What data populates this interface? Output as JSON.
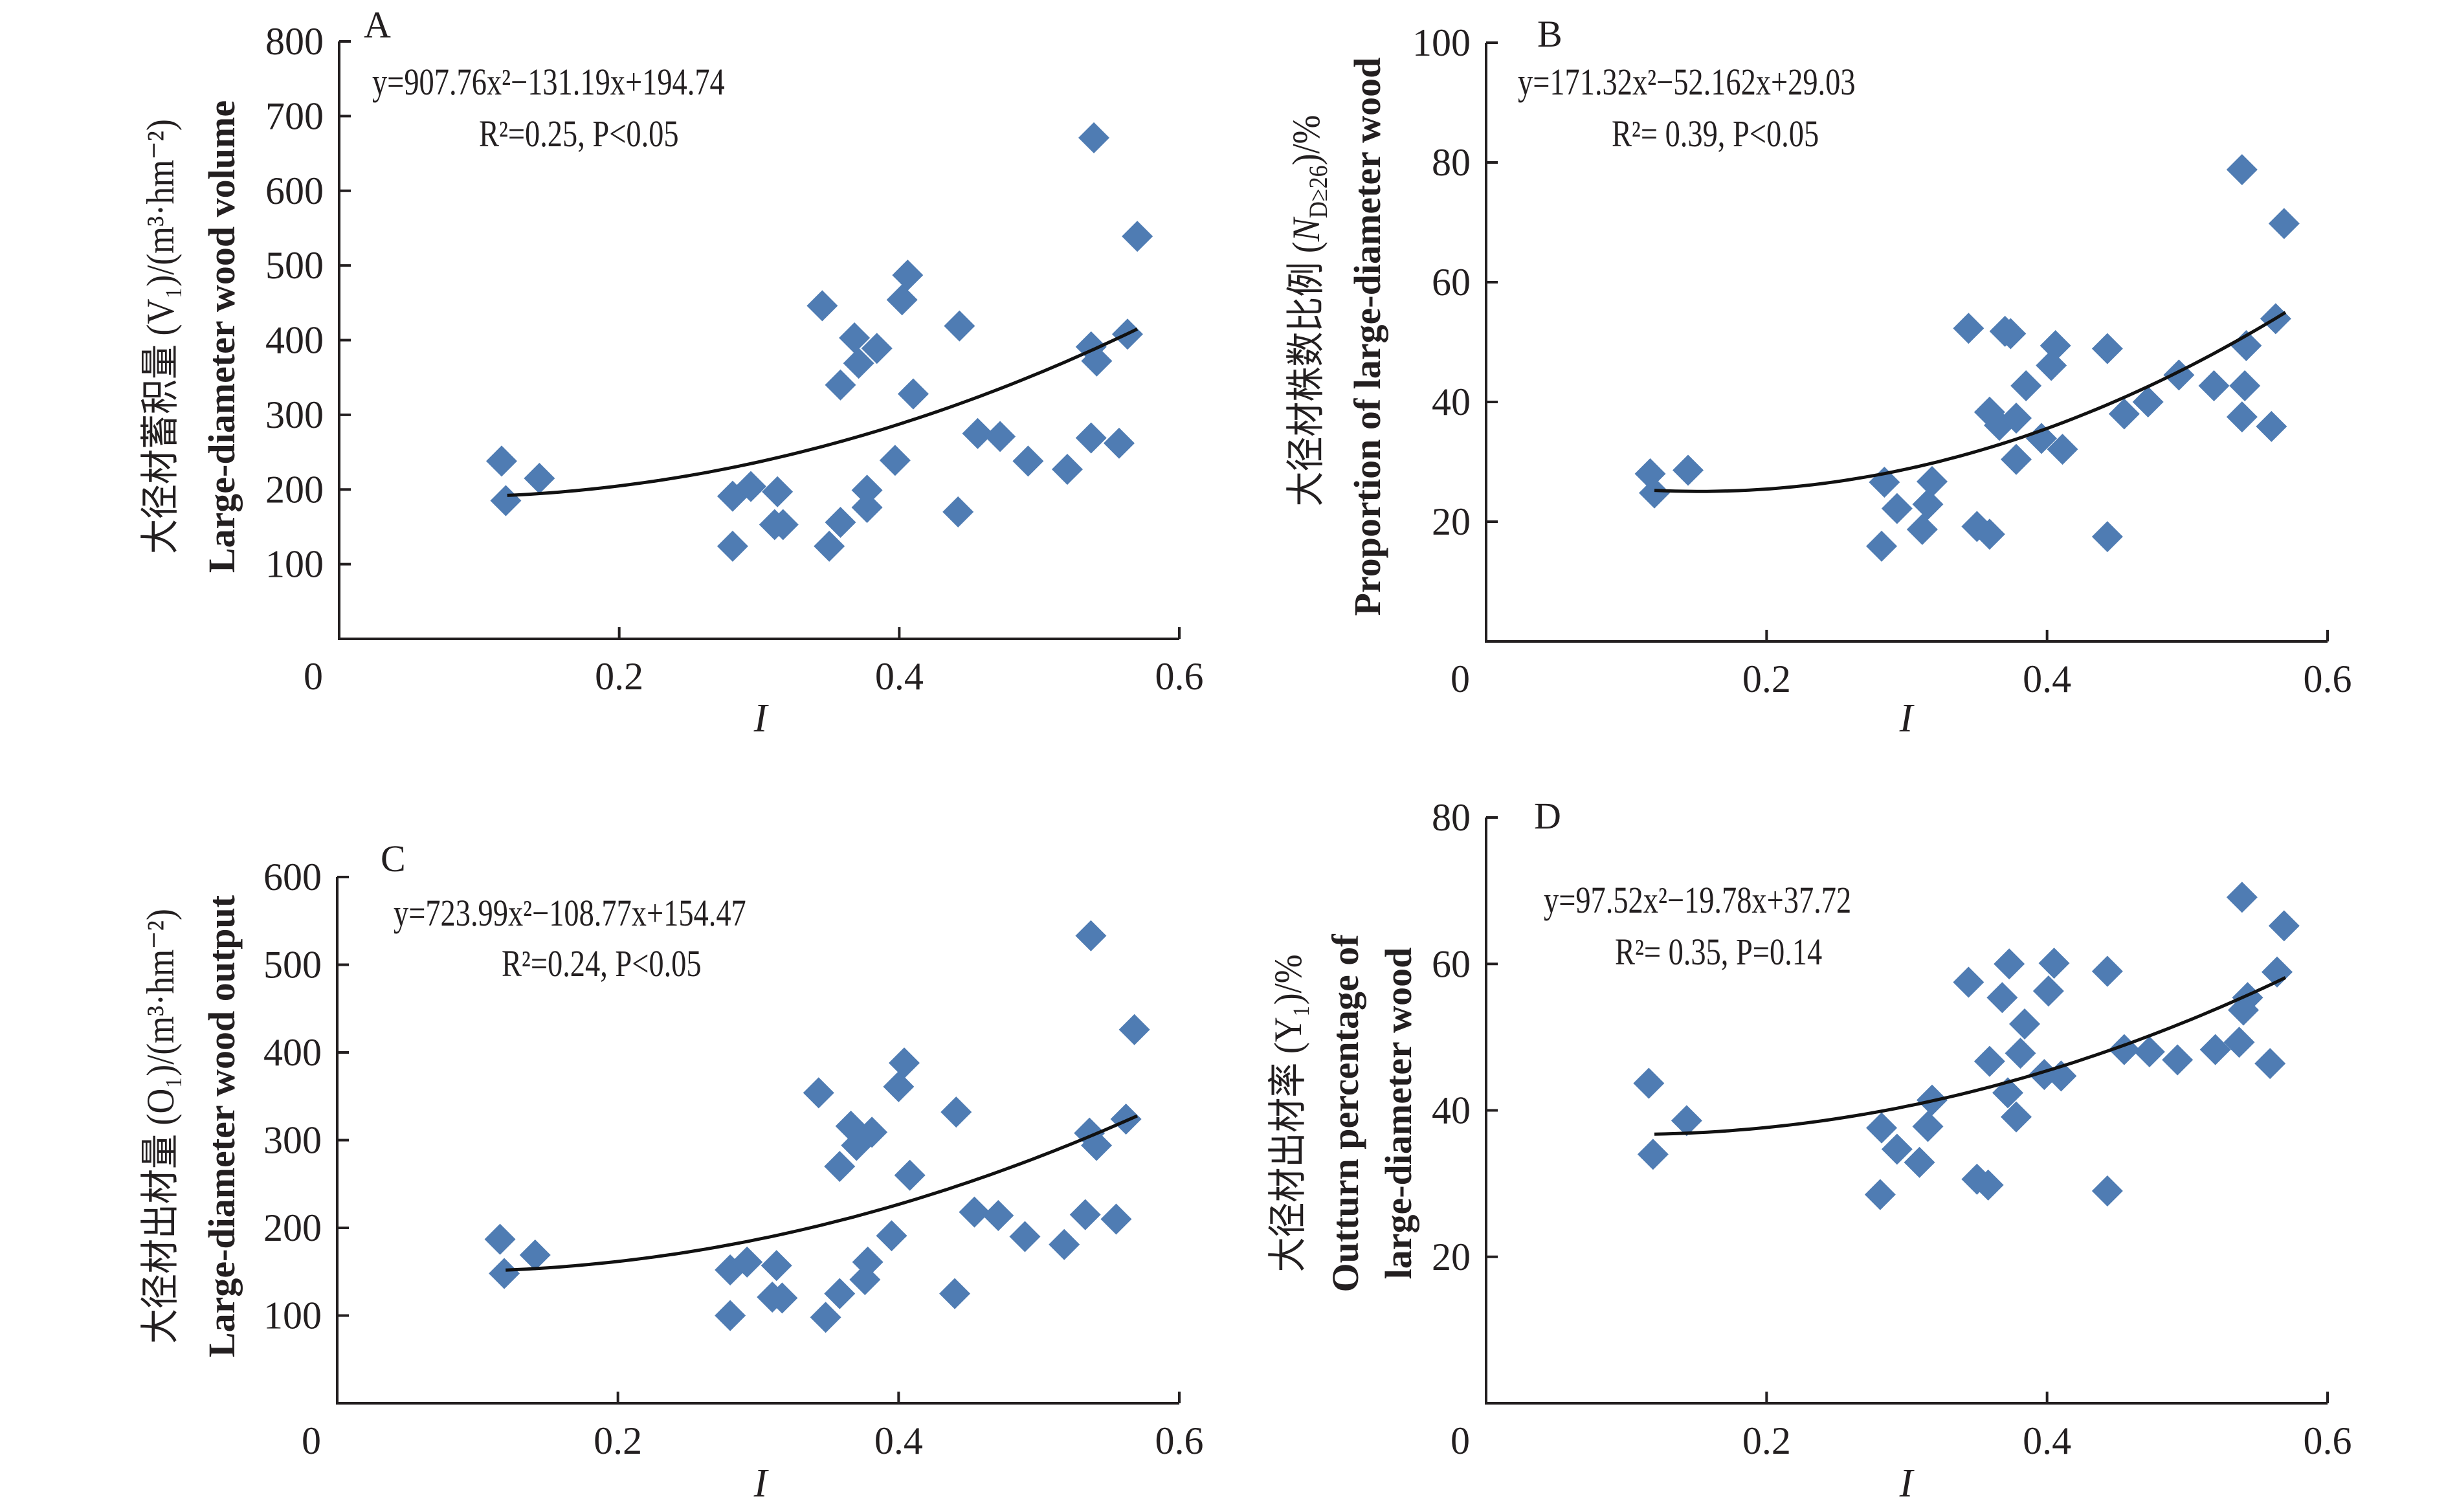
{
  "figure": {
    "colors": {
      "marker": "#4f7cb3",
      "axis": "#231f20",
      "trend": "#111111"
    },
    "marker_shape": "diamond"
  },
  "chart_data": [
    {
      "type": "scatter",
      "panel": "A",
      "title": "",
      "xlabel": "I",
      "ylabel_cn": "大径材蓄积量 (V₁)/(m³·hm⁻²)",
      "ylabel_en": "Large-diameter wood volume",
      "equation": "y=907.76x²−131.19x+194.74",
      "stats": "R²=0.25, P<0.05",
      "fit": {
        "a": 907.76,
        "b": -131.19,
        "c": 194.74,
        "x_range": [
          0.12,
          0.57
        ]
      },
      "xlim": [
        0,
        0.6
      ],
      "ylim": [
        0,
        800
      ],
      "xticks": [
        "0",
        "0.2",
        "0.4",
        "0.6"
      ],
      "yticks": [
        "100",
        "200",
        "300",
        "400",
        "500",
        "600",
        "700",
        "800"
      ],
      "ytick_values": [
        100,
        200,
        300,
        400,
        500,
        600,
        700,
        800
      ],
      "xtick_values": [
        0,
        0.2,
        0.4,
        0.6
      ],
      "grid": false,
      "points": [
        [
          0.116,
          238
        ],
        [
          0.119,
          185
        ],
        [
          0.143,
          215
        ],
        [
          0.281,
          191
        ],
        [
          0.281,
          124
        ],
        [
          0.294,
          204
        ],
        [
          0.313,
          197
        ],
        [
          0.311,
          153
        ],
        [
          0.317,
          153
        ],
        [
          0.345,
          446
        ],
        [
          0.35,
          124
        ],
        [
          0.358,
          156
        ],
        [
          0.358,
          340
        ],
        [
          0.368,
          403
        ],
        [
          0.371,
          369
        ],
        [
          0.384,
          389
        ],
        [
          0.377,
          199
        ],
        [
          0.377,
          176
        ],
        [
          0.397,
          239
        ],
        [
          0.402,
          454
        ],
        [
          0.406,
          487
        ],
        [
          0.41,
          328
        ],
        [
          0.443,
          419
        ],
        [
          0.442,
          170
        ],
        [
          0.456,
          275
        ],
        [
          0.472,
          271
        ],
        [
          0.492,
          238
        ],
        [
          0.52,
          227
        ],
        [
          0.539,
          671
        ],
        [
          0.537,
          269
        ],
        [
          0.537,
          391
        ],
        [
          0.541,
          372
        ],
        [
          0.557,
          262
        ],
        [
          0.563,
          408
        ],
        [
          0.57,
          539
        ]
      ]
    },
    {
      "type": "scatter",
      "panel": "B",
      "title": "",
      "xlabel": "I",
      "ylabel_cn": "大径材株数比例 (N_D≥26)/%",
      "ylabel_cn_main": "大径材株数比例 (",
      "ylabel_cn_N": "N",
      "ylabel_cn_sub": "D≥26",
      "ylabel_cn_tail": ")/%",
      "ylabel_en": "Proportion of large-diameter wood",
      "equation": "y=171.32x²−52.162x+29.03",
      "stats": "R²= 0.39, P<0.05",
      "fit": {
        "a": 171.32,
        "b": -52.162,
        "c": 29.03,
        "x_range": [
          0.12,
          0.57
        ]
      },
      "xlim": [
        0,
        0.6
      ],
      "ylim": [
        0,
        100
      ],
      "xticks": [
        "0",
        "0.2",
        "0.4",
        "0.6"
      ],
      "yticks": [
        "20",
        "40",
        "60",
        "80",
        "100"
      ],
      "ytick_values": [
        20,
        40,
        60,
        80,
        100
      ],
      "xtick_values": [
        0,
        0.2,
        0.4,
        0.6
      ],
      "grid": false,
      "points": [
        [
          0.117,
          28.0
        ],
        [
          0.12,
          24.8
        ],
        [
          0.144,
          28.6
        ],
        [
          0.284,
          26.6
        ],
        [
          0.282,
          15.9
        ],
        [
          0.293,
          22.2
        ],
        [
          0.318,
          26.7
        ],
        [
          0.315,
          22.9
        ],
        [
          0.311,
          18.7
        ],
        [
          0.344,
          52.3
        ],
        [
          0.35,
          19.2
        ],
        [
          0.359,
          17.9
        ],
        [
          0.359,
          38.3
        ],
        [
          0.366,
          36.1
        ],
        [
          0.37,
          51.8
        ],
        [
          0.374,
          51.4
        ],
        [
          0.378,
          37.3
        ],
        [
          0.378,
          30.4
        ],
        [
          0.385,
          42.7
        ],
        [
          0.396,
          33.9
        ],
        [
          0.403,
          46.1
        ],
        [
          0.406,
          49.4
        ],
        [
          0.411,
          32.1
        ],
        [
          0.443,
          48.9
        ],
        [
          0.443,
          17.5
        ],
        [
          0.455,
          38.0
        ],
        [
          0.472,
          40.0
        ],
        [
          0.494,
          44.5
        ],
        [
          0.519,
          42.7
        ],
        [
          0.539,
          78.8
        ],
        [
          0.539,
          37.5
        ],
        [
          0.541,
          42.7
        ],
        [
          0.542,
          49.4
        ],
        [
          0.56,
          35.9
        ],
        [
          0.563,
          53.9
        ],
        [
          0.569,
          69.8
        ]
      ]
    },
    {
      "type": "scatter",
      "panel": "C",
      "title": "",
      "xlabel": "I",
      "ylabel_cn": "大径材出材量 (O₁)/(m³·hm⁻²)",
      "ylabel_en": "Large-diameter wood output",
      "equation": "y=723.99x²−108.77x+154.47",
      "stats": "R²=0.24, P<0.05",
      "fit": {
        "a": 723.99,
        "b": -108.77,
        "c": 154.47,
        "x_range": [
          0.12,
          0.57
        ]
      },
      "xlim": [
        0,
        0.6
      ],
      "ylim": [
        0,
        600
      ],
      "xticks": [
        "0",
        "0.2",
        "0.4",
        "0.6"
      ],
      "yticks": [
        "100",
        "200",
        "300",
        "400",
        "500",
        "600"
      ],
      "ytick_values": [
        100,
        200,
        300,
        400,
        500,
        600
      ],
      "xtick_values": [
        0,
        0.2,
        0.4,
        0.6
      ],
      "grid": false,
      "points": [
        [
          0.116,
          187
        ],
        [
          0.119,
          148
        ],
        [
          0.141,
          169
        ],
        [
          0.28,
          152
        ],
        [
          0.28,
          100
        ],
        [
          0.292,
          161
        ],
        [
          0.313,
          157
        ],
        [
          0.31,
          121
        ],
        [
          0.317,
          120
        ],
        [
          0.343,
          354
        ],
        [
          0.348,
          98
        ],
        [
          0.358,
          125
        ],
        [
          0.358,
          270
        ],
        [
          0.366,
          316
        ],
        [
          0.37,
          294
        ],
        [
          0.381,
          309
        ],
        [
          0.378,
          161
        ],
        [
          0.376,
          141
        ],
        [
          0.395,
          191
        ],
        [
          0.4,
          361
        ],
        [
          0.404,
          388
        ],
        [
          0.408,
          260
        ],
        [
          0.441,
          332
        ],
        [
          0.44,
          125
        ],
        [
          0.454,
          218
        ],
        [
          0.471,
          214
        ],
        [
          0.49,
          190
        ],
        [
          0.518,
          181
        ],
        [
          0.537,
          533
        ],
        [
          0.533,
          215
        ],
        [
          0.536,
          308
        ],
        [
          0.541,
          294
        ],
        [
          0.555,
          210
        ],
        [
          0.562,
          324
        ],
        [
          0.568,
          426
        ]
      ]
    },
    {
      "type": "scatter",
      "panel": "D",
      "title": "",
      "xlabel": "I",
      "ylabel_cn": "大径材出材率 (Y₁)/%",
      "ylabel_en_1": "Outturn percentage of",
      "ylabel_en_2": "large-diameter wood",
      "equation": "y=97.52x²−19.78x+37.72",
      "stats": "R²= 0.35, P=0.14",
      "fit": {
        "a": 97.52,
        "b": -19.78,
        "c": 37.72,
        "x_range": [
          0.12,
          0.57
        ]
      },
      "xlim": [
        0,
        0.6
      ],
      "ylim": [
        0,
        80
      ],
      "xticks": [
        "0",
        "0.2",
        "0.4",
        "0.6"
      ],
      "yticks": [
        "20",
        "40",
        "60",
        "80"
      ],
      "ytick_values": [
        20,
        40,
        60,
        80
      ],
      "xtick_values": [
        0,
        0.2,
        0.4,
        0.6
      ],
      "grid": false,
      "points": [
        [
          0.116,
          43.7
        ],
        [
          0.119,
          34.0
        ],
        [
          0.143,
          38.6
        ],
        [
          0.282,
          37.6
        ],
        [
          0.281,
          28.5
        ],
        [
          0.293,
          34.7
        ],
        [
          0.309,
          32.9
        ],
        [
          0.315,
          37.8
        ],
        [
          0.318,
          41.4
        ],
        [
          0.344,
          57.5
        ],
        [
          0.35,
          30.6
        ],
        [
          0.358,
          29.8
        ],
        [
          0.359,
          46.7
        ],
        [
          0.368,
          55.4
        ],
        [
          0.373,
          60.0
        ],
        [
          0.372,
          42.4
        ],
        [
          0.378,
          39.1
        ],
        [
          0.381,
          47.8
        ],
        [
          0.384,
          51.8
        ],
        [
          0.398,
          44.9
        ],
        [
          0.401,
          56.3
        ],
        [
          0.405,
          60.1
        ],
        [
          0.41,
          44.7
        ],
        [
          0.443,
          59.0
        ],
        [
          0.443,
          29.0
        ],
        [
          0.455,
          48.3
        ],
        [
          0.473,
          48.0
        ],
        [
          0.493,
          46.9
        ],
        [
          0.52,
          48.3
        ],
        [
          0.539,
          69.1
        ],
        [
          0.537,
          49.3
        ],
        [
          0.54,
          53.7
        ],
        [
          0.543,
          55.4
        ],
        [
          0.559,
          46.4
        ],
        [
          0.564,
          58.9
        ],
        [
          0.569,
          65.2
        ]
      ]
    }
  ]
}
